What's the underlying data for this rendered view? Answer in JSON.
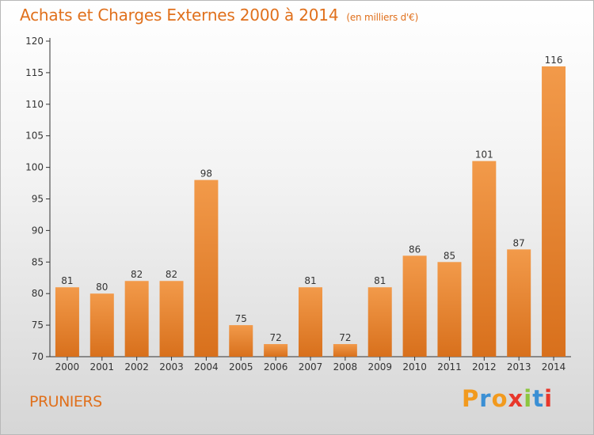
{
  "header": {
    "title": "Achats et Charges Externes 2000 à 2014",
    "unit": "(en milliers d'€)"
  },
  "location": "PRUNIERS",
  "logo": {
    "letters": [
      "P",
      "r",
      "o",
      "x",
      "i",
      "t",
      "i"
    ],
    "colors": [
      "#f29a1e",
      "#3a8fd4",
      "#f29a1e",
      "#e8372b",
      "#8cc63f",
      "#3a8fd4",
      "#e8372b"
    ]
  },
  "chart_data": {
    "type": "bar",
    "categories": [
      "2000",
      "2001",
      "2002",
      "2003",
      "2004",
      "2005",
      "2006",
      "2007",
      "2008",
      "2009",
      "2010",
      "2011",
      "2012",
      "2013",
      "2014"
    ],
    "values": [
      81,
      80,
      82,
      82,
      98,
      75,
      72,
      81,
      72,
      81,
      86,
      85,
      101,
      87,
      116
    ],
    "title": "Achats et Charges Externes 2000 à 2014",
    "xlabel": "",
    "ylabel": "",
    "ylim": [
      70,
      120
    ],
    "yticks": [
      70,
      75,
      80,
      85,
      90,
      95,
      100,
      105,
      110,
      115,
      120
    ],
    "grid": false,
    "bar_color": "#f29a4a",
    "bar_color_dark": "#d8701c"
  }
}
